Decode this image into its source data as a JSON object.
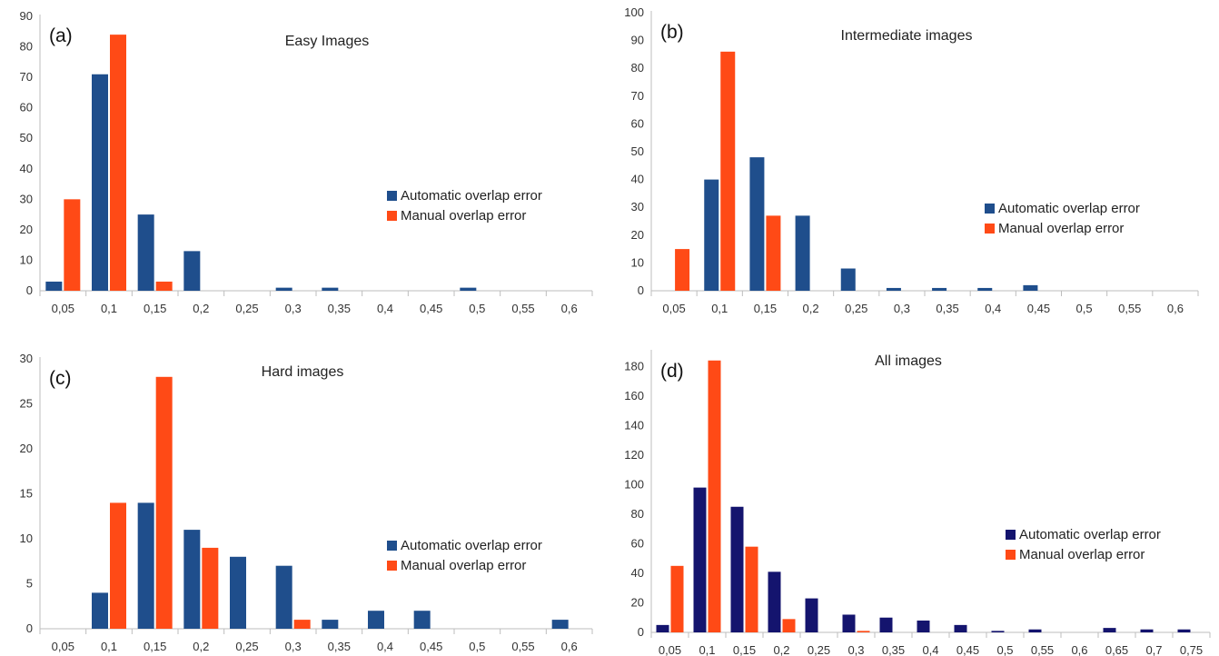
{
  "chart_data": [
    {
      "type": "bar",
      "panel_label": "(a)",
      "title": "Easy Images",
      "categories": [
        "0,05",
        "0,1",
        "0,15",
        "0,2",
        "0,25",
        "0,3",
        "0,35",
        "0,4",
        "0,45",
        "0,5",
        "0,55",
        "0,6"
      ],
      "series": [
        {
          "name": "Automatic overlap error",
          "color": "#1f4e8c",
          "values": [
            3,
            71,
            25,
            13,
            0,
            1,
            1,
            0,
            0,
            1,
            0,
            0
          ]
        },
        {
          "name": "Manual overlap error",
          "color": "#ff4a16",
          "values": [
            30,
            84,
            3,
            0,
            0,
            0,
            0,
            0,
            0,
            0,
            0,
            0
          ]
        }
      ],
      "ylim": [
        0,
        90
      ],
      "yticks": [
        0,
        10,
        20,
        30,
        40,
        50,
        60,
        70,
        80,
        90
      ],
      "legend_position": "right",
      "grid": false
    },
    {
      "type": "bar",
      "panel_label": "(b)",
      "title": "Intermediate images",
      "categories": [
        "0,05",
        "0,1",
        "0,15",
        "0,2",
        "0,25",
        "0,3",
        "0,35",
        "0,4",
        "0,45",
        "0,5",
        "0,55",
        "0,6"
      ],
      "series": [
        {
          "name": "Automatic overlap error",
          "color": "#1f4e8c",
          "values": [
            0,
            40,
            48,
            27,
            8,
            1,
            1,
            1,
            2,
            0,
            0,
            0
          ]
        },
        {
          "name": "Manual overlap error",
          "color": "#ff4a16",
          "values": [
            15,
            86,
            27,
            0,
            0,
            0,
            0,
            0,
            0,
            0,
            0,
            0
          ]
        }
      ],
      "ylim": [
        0,
        100
      ],
      "yticks": [
        0,
        10,
        20,
        30,
        40,
        50,
        60,
        70,
        80,
        90,
        100
      ],
      "legend_position": "right",
      "grid": false
    },
    {
      "type": "bar",
      "panel_label": "(c)",
      "title": "Hard images",
      "categories": [
        "0,05",
        "0,1",
        "0,15",
        "0,2",
        "0,25",
        "0,3",
        "0,35",
        "0,4",
        "0,45",
        "0,5",
        "0,55",
        "0,6"
      ],
      "series": [
        {
          "name": "Automatic overlap error",
          "color": "#1f4e8c",
          "values": [
            0,
            4,
            14,
            11,
            8,
            7,
            1,
            2,
            2,
            0,
            0,
            1
          ]
        },
        {
          "name": "Manual overlap error",
          "color": "#ff4a16",
          "values": [
            0,
            14,
            28,
            9,
            0,
            1,
            0,
            0,
            0,
            0,
            0,
            0
          ]
        }
      ],
      "ylim": [
        0,
        30
      ],
      "yticks": [
        0,
        5,
        10,
        15,
        20,
        25,
        30
      ],
      "legend_position": "right",
      "grid": false
    },
    {
      "type": "bar",
      "panel_label": "(d)",
      "title": "All images",
      "categories": [
        "0,05",
        "0,1",
        "0,15",
        "0,2",
        "0,25",
        "0,3",
        "0,35",
        "0,4",
        "0,45",
        "0,5",
        "0,55",
        "0,6",
        "0,65",
        "0,7",
        "0,75"
      ],
      "series": [
        {
          "name": "Automatic overlap error",
          "color": "#14146e",
          "values": [
            5,
            98,
            85,
            41,
            23,
            12,
            10,
            8,
            5,
            1,
            2,
            0,
            3,
            2,
            2
          ]
        },
        {
          "name": "Manual overlap error",
          "color": "#ff4a16",
          "values": [
            45,
            184,
            58,
            9,
            0,
            1,
            0,
            0,
            0,
            0,
            0,
            0,
            0,
            0,
            0
          ]
        }
      ],
      "ylim": [
        0,
        190
      ],
      "yticks": [
        0,
        20,
        40,
        60,
        80,
        100,
        120,
        140,
        160,
        180
      ],
      "legend_position": "right",
      "grid": false
    }
  ]
}
